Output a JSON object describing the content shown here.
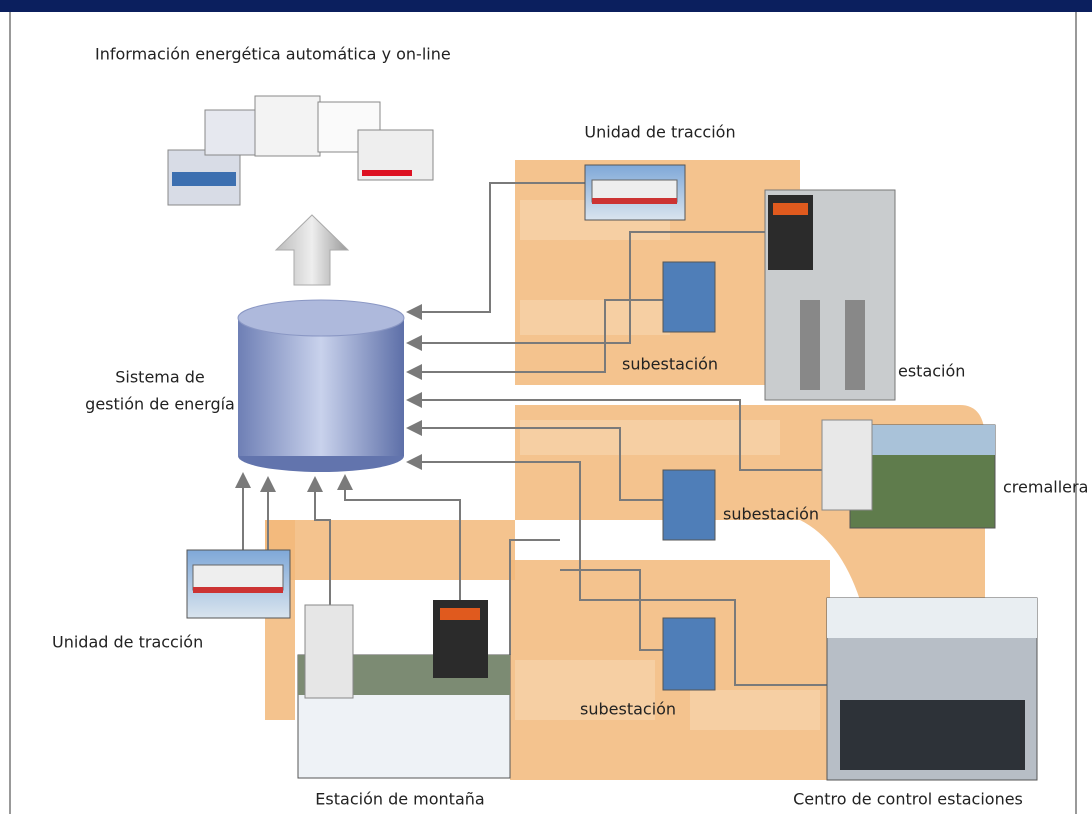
{
  "header": {
    "title": "Información energética automática y on-line"
  },
  "center": {
    "lines": [
      "Sistema de",
      "gestión de energía"
    ]
  },
  "nodes": [
    {
      "label": "Unidad de tracción"
    },
    {
      "label": "estación"
    },
    {
      "label": "subestación"
    },
    {
      "label": "cremallera"
    },
    {
      "label": "subestación"
    },
    {
      "label": "subestación"
    },
    {
      "label": "Centro de control estaciones"
    },
    {
      "label": "Unidad de tracción"
    },
    {
      "label": "Estación de montaña"
    }
  ]
}
